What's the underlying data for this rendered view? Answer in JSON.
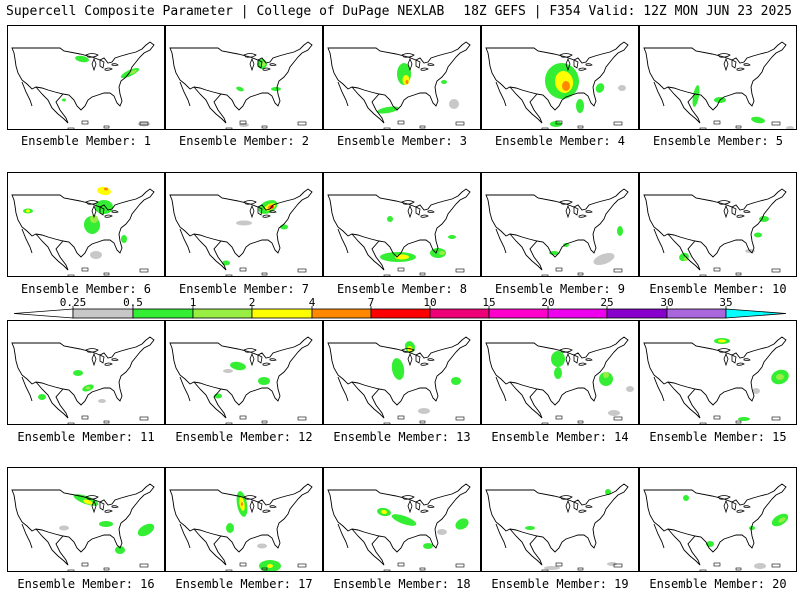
{
  "header": {
    "left": "Supercell Composite Parameter | College of DuPage NEXLAB",
    "right": "18Z GEFS | F354 Valid: 12Z MON JUN 23 2025"
  },
  "member_prefix": "Ensemble Member: ",
  "members": [
    "1",
    "2",
    "3",
    "4",
    "5",
    "6",
    "7",
    "8",
    "9",
    "10",
    "11",
    "12",
    "13",
    "14",
    "15",
    "16",
    "17",
    "18",
    "19",
    "20"
  ],
  "colorbar": {
    "thresholds": [
      "0.25",
      "0.5",
      "1",
      "2",
      "4",
      "7",
      "10",
      "15",
      "20",
      "25",
      "30",
      "35"
    ],
    "colors": [
      "#c8c8c8",
      "#33ee33",
      "#99ee44",
      "#ffff00",
      "#ff8800",
      "#ff0000",
      "#ee0077",
      "#ff00cc",
      "#ee00ee",
      "#8800cc",
      "#aa66dd",
      "#00ffff"
    ]
  },
  "colors": {
    "gray": "#c8c8c8",
    "green": "#33ee33",
    "lime": "#99ee44",
    "yellow": "#ffff00",
    "orange": "#ff8800",
    "red": "#ff0000"
  }
}
